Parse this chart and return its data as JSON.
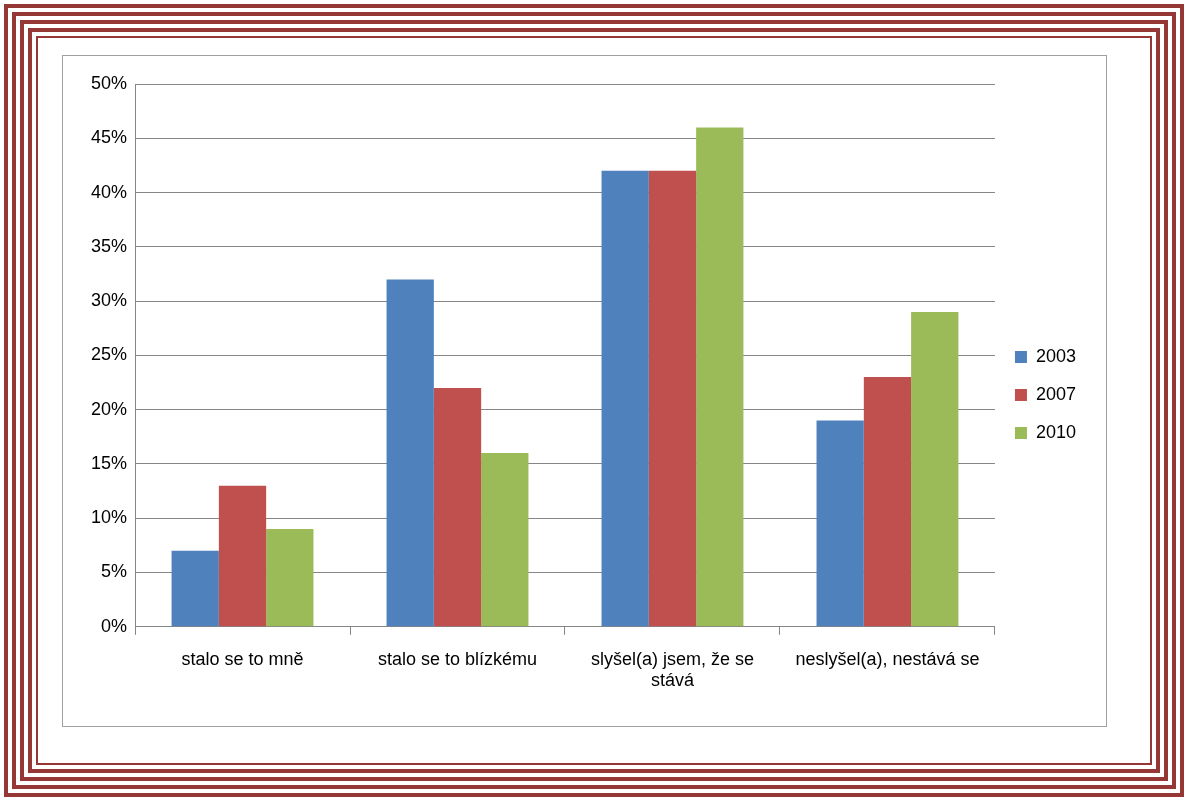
{
  "chart_data": {
    "type": "bar",
    "categories": [
      "stalo se to mně",
      "stalo se to blízkému",
      "slyšel(a) jsem, že se stává",
      "neslyšel(a), nestává se"
    ],
    "series": [
      {
        "name": "2003",
        "color": "#4f81bd",
        "values": [
          7,
          32,
          42,
          19
        ]
      },
      {
        "name": "2007",
        "color": "#c0504d",
        "values": [
          13,
          22,
          42,
          23
        ]
      },
      {
        "name": "2010",
        "color": "#9bbb59",
        "values": [
          9,
          16,
          46,
          29
        ]
      }
    ],
    "ylim": [
      0,
      50
    ],
    "yticks": [
      {
        "value": 0,
        "label": "0%"
      },
      {
        "value": 5,
        "label": "5%"
      },
      {
        "value": 10,
        "label": "10%"
      },
      {
        "value": 15,
        "label": "15%"
      },
      {
        "value": 20,
        "label": "20%"
      },
      {
        "value": 25,
        "label": "25%"
      },
      {
        "value": 30,
        "label": "30%"
      },
      {
        "value": 35,
        "label": "35%"
      },
      {
        "value": 40,
        "label": "40%"
      },
      {
        "value": 45,
        "label": "45%"
      },
      {
        "value": 50,
        "label": "50%"
      }
    ],
    "grid": "y",
    "legend": "right"
  }
}
